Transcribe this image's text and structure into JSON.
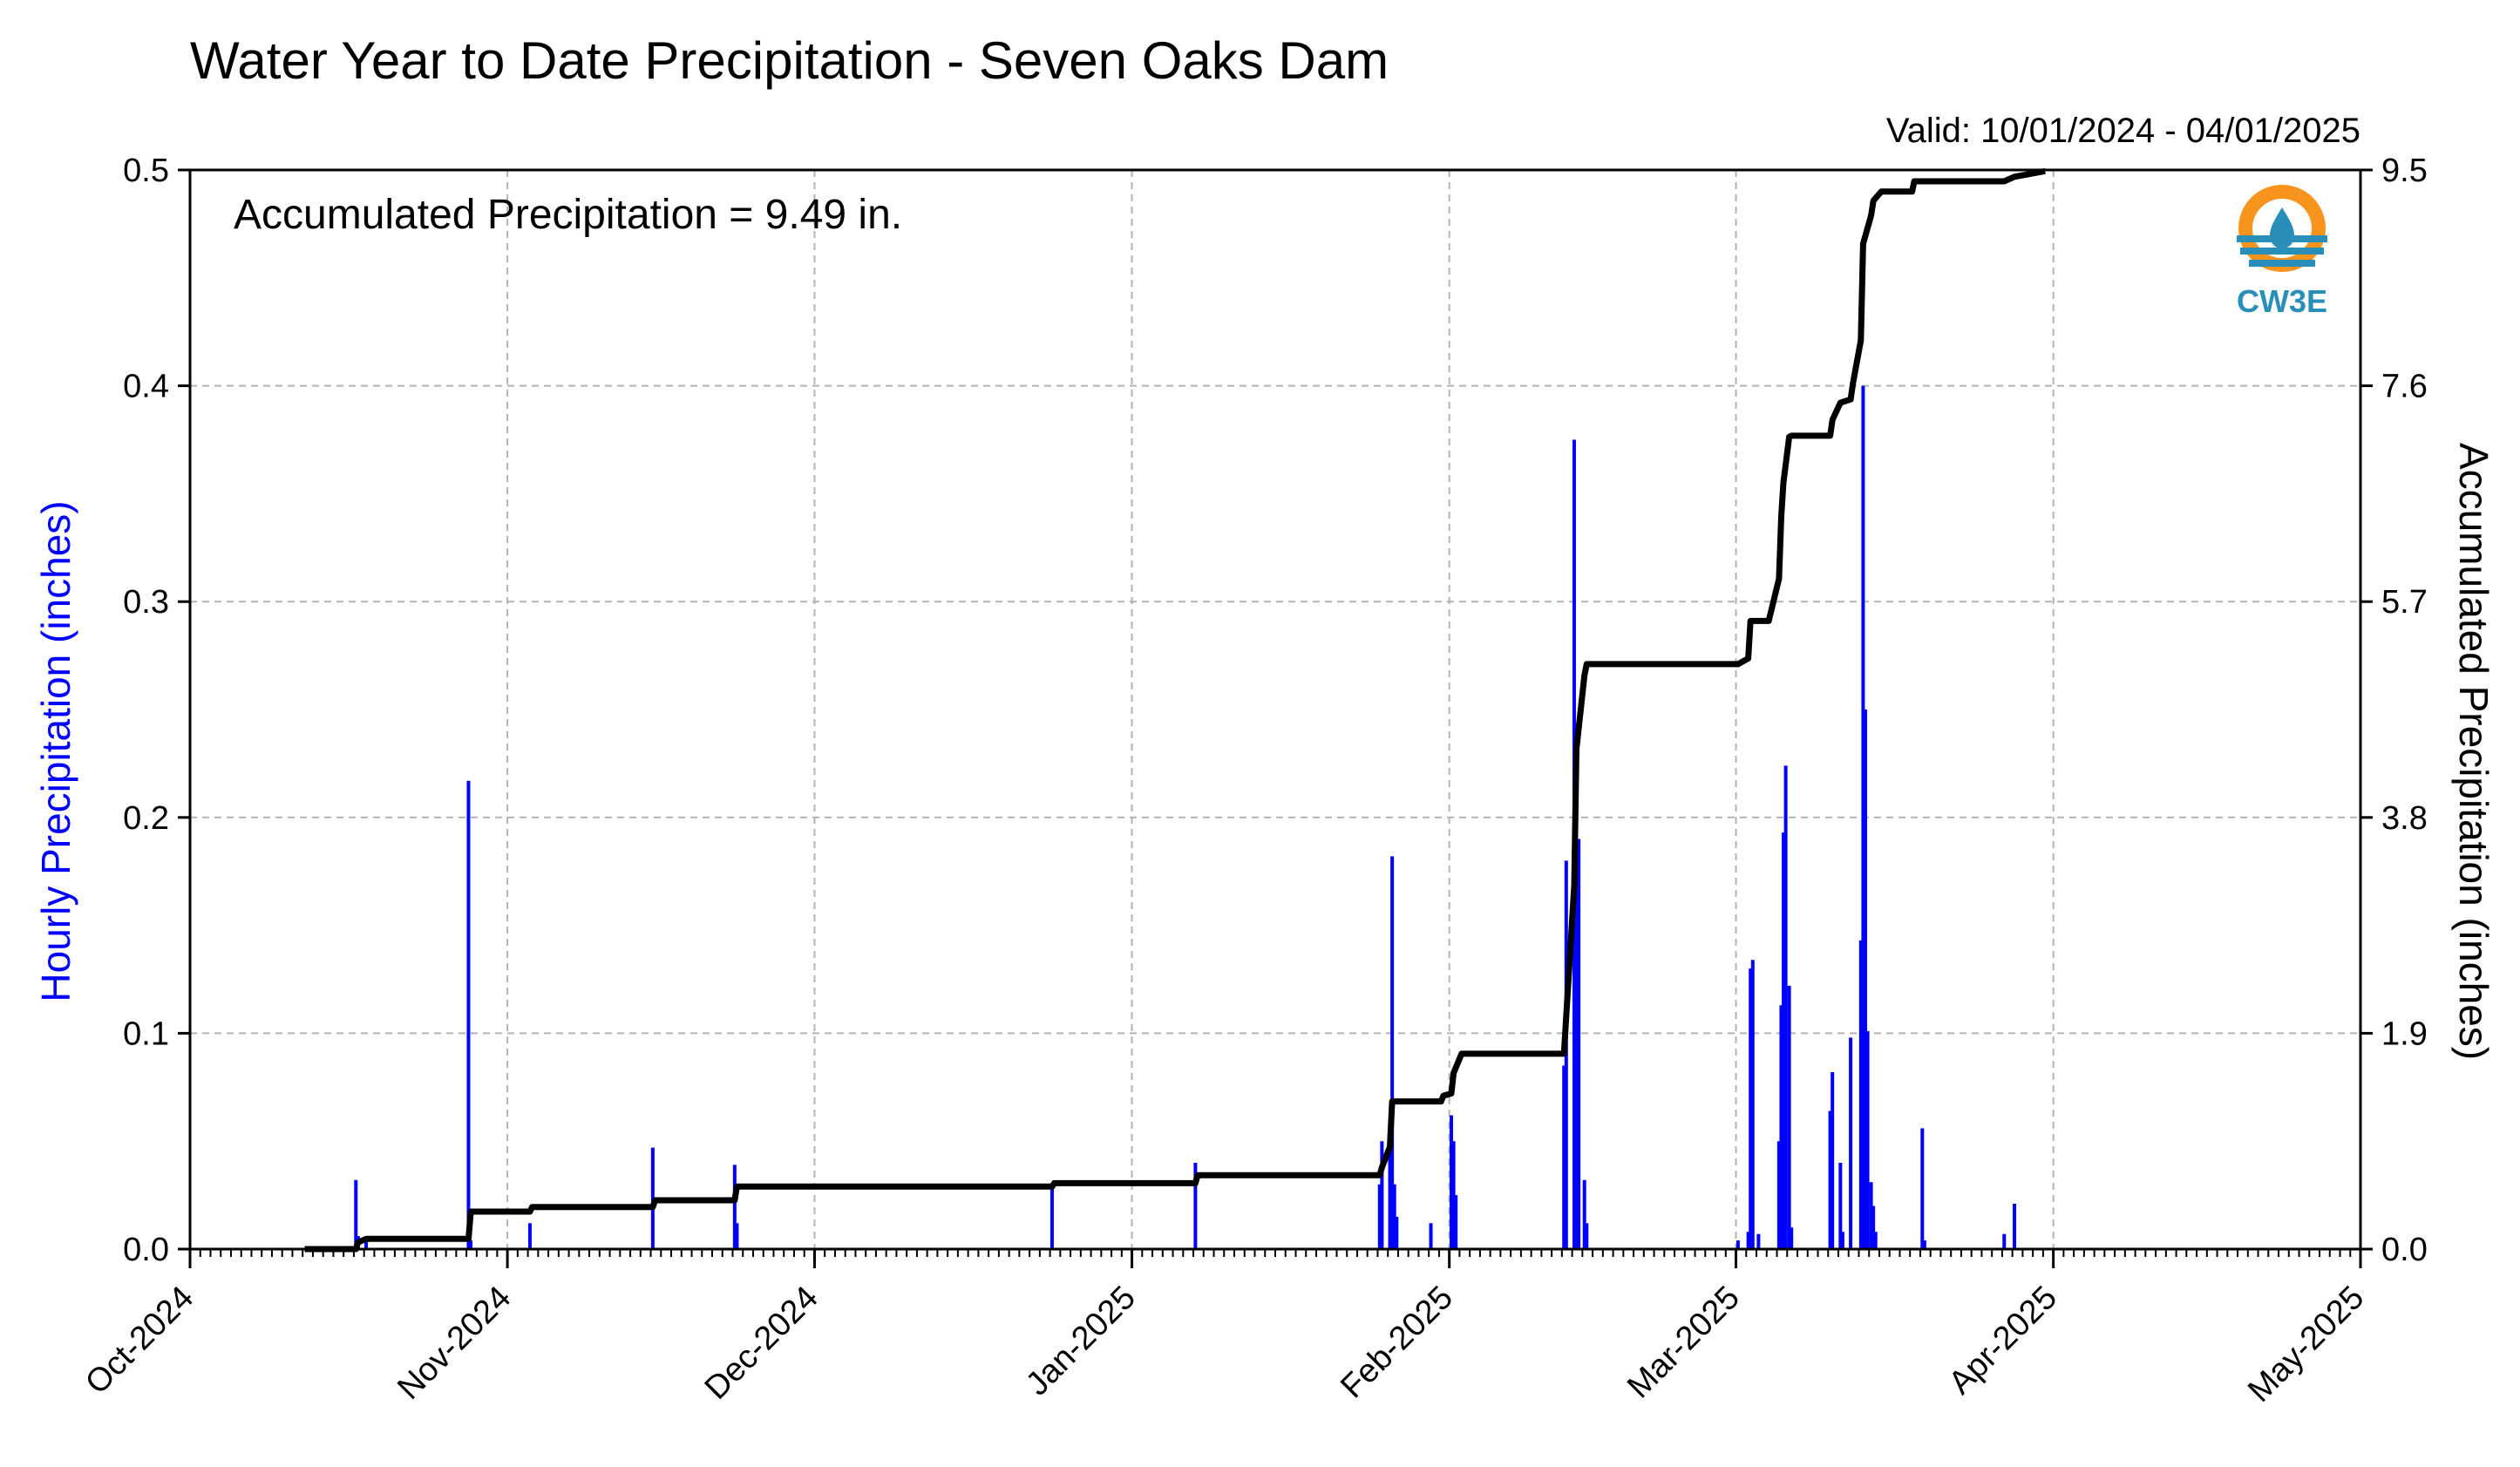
{
  "chart_data": {
    "type": "bar+line",
    "title": "Water Year to Date Precipitation - Seven Oaks Dam",
    "valid_range": "Valid: 10/01/2024 - 04/01/2025",
    "annotation": "Accumulated Precipitation = 9.49 in.",
    "logo_text": "CW3E",
    "ylabel_left": "Hourly Precipitation (inches)",
    "ylabel_right": "Accumulated Precipitation (inches)",
    "ylim_left": [
      0,
      0.5
    ],
    "ylim_right": [
      0,
      9.5
    ],
    "yticks_left": [
      "0.0",
      "0.1",
      "0.2",
      "0.3",
      "0.4",
      "0.5"
    ],
    "yticks_right": [
      "0.0",
      "1.9",
      "3.8",
      "5.7",
      "7.6",
      "9.5"
    ],
    "x_start": "2024-10-01",
    "x_end": "2025-05-01",
    "xticks": [
      {
        "date": "2024-10-01",
        "label": "Oct-2024"
      },
      {
        "date": "2024-11-01",
        "label": "Nov-2024"
      },
      {
        "date": "2024-12-01",
        "label": "Dec-2024"
      },
      {
        "date": "2025-01-01",
        "label": "Jan-2025"
      },
      {
        "date": "2025-02-01",
        "label": "Feb-2025"
      },
      {
        "date": "2025-03-01",
        "label": "Mar-2025"
      },
      {
        "date": "2025-04-01",
        "label": "Apr-2025"
      },
      {
        "date": "2025-05-01",
        "label": "May-2025"
      }
    ],
    "grid": true,
    "colors": {
      "hourly": "#0000ff",
      "accumulated": "#000000"
    },
    "series": [
      {
        "name": "Hourly Precipitation",
        "type": "bar",
        "points": [
          {
            "x": "2024-10-17",
            "y": 0.032
          },
          {
            "x": "2024-10-17",
            "y": 0.006
          },
          {
            "x": "2024-10-18",
            "y": 0.004
          },
          {
            "x": "2024-10-28",
            "y": 0.217
          },
          {
            "x": "2024-10-28",
            "y": 0.004
          },
          {
            "x": "2024-11-03",
            "y": 0.012
          },
          {
            "x": "2024-11-15",
            "y": 0.047
          },
          {
            "x": "2024-11-23",
            "y": 0.039
          },
          {
            "x": "2024-11-23",
            "y": 0.012
          },
          {
            "x": "2024-12-24",
            "y": 0.028
          },
          {
            "x": "2025-01-07",
            "y": 0.04
          },
          {
            "x": "2025-01-25",
            "y": 0.03
          },
          {
            "x": "2025-01-25",
            "y": 0.05
          },
          {
            "x": "2025-01-26",
            "y": 0.052
          },
          {
            "x": "2025-01-26",
            "y": 0.182
          },
          {
            "x": "2025-01-26",
            "y": 0.03
          },
          {
            "x": "2025-01-26",
            "y": 0.015
          },
          {
            "x": "2025-01-30",
            "y": 0.012
          },
          {
            "x": "2025-02-01",
            "y": 0.062
          },
          {
            "x": "2025-02-01",
            "y": 0.05
          },
          {
            "x": "2025-02-01",
            "y": 0.025
          },
          {
            "x": "2025-02-12",
            "y": 0.085
          },
          {
            "x": "2025-02-12",
            "y": 0.18
          },
          {
            "x": "2025-02-13",
            "y": 0.375
          },
          {
            "x": "2025-02-13",
            "y": 0.18
          },
          {
            "x": "2025-02-13",
            "y": 0.19
          },
          {
            "x": "2025-02-14",
            "y": 0.032
          },
          {
            "x": "2025-02-14",
            "y": 0.012
          },
          {
            "x": "2025-03-01",
            "y": 0.004
          },
          {
            "x": "2025-03-02",
            "y": 0.008
          },
          {
            "x": "2025-03-02",
            "y": 0.13
          },
          {
            "x": "2025-03-02",
            "y": 0.134
          },
          {
            "x": "2025-03-03",
            "y": 0.007
          },
          {
            "x": "2025-03-05",
            "y": 0.05
          },
          {
            "x": "2025-03-05",
            "y": 0.113
          },
          {
            "x": "2025-03-05",
            "y": 0.193
          },
          {
            "x": "2025-03-05",
            "y": 0.224
          },
          {
            "x": "2025-03-06",
            "y": 0.122
          },
          {
            "x": "2025-03-06",
            "y": 0.01
          },
          {
            "x": "2025-03-10",
            "y": 0.064
          },
          {
            "x": "2025-03-10",
            "y": 0.082
          },
          {
            "x": "2025-03-11",
            "y": 0.04
          },
          {
            "x": "2025-03-11",
            "y": 0.008
          },
          {
            "x": "2025-03-12",
            "y": 0.098
          },
          {
            "x": "2025-03-13",
            "y": 0.143
          },
          {
            "x": "2025-03-13",
            "y": 0.4
          },
          {
            "x": "2025-03-13",
            "y": 0.25
          },
          {
            "x": "2025-03-13",
            "y": 0.101
          },
          {
            "x": "2025-03-14",
            "y": 0.031
          },
          {
            "x": "2025-03-14",
            "y": 0.02
          },
          {
            "x": "2025-03-14",
            "y": 0.008
          },
          {
            "x": "2025-03-19",
            "y": 0.056
          },
          {
            "x": "2025-03-19",
            "y": 0.004
          },
          {
            "x": "2025-03-27",
            "y": 0.007
          },
          {
            "x": "2025-03-28",
            "y": 0.021
          }
        ]
      },
      {
        "name": "Accumulated Precipitation",
        "type": "line",
        "points": [
          {
            "x": "2024-10-12",
            "y": 0.0
          },
          {
            "x": "2024-10-17",
            "y": 0.0
          },
          {
            "x": "2024-10-17",
            "y": 0.06
          },
          {
            "x": "2024-10-18",
            "y": 0.09
          },
          {
            "x": "2024-10-28",
            "y": 0.09
          },
          {
            "x": "2024-10-28",
            "y": 0.33
          },
          {
            "x": "2024-11-03",
            "y": 0.33
          },
          {
            "x": "2024-11-03",
            "y": 0.37
          },
          {
            "x": "2024-11-15",
            "y": 0.37
          },
          {
            "x": "2024-11-15",
            "y": 0.43
          },
          {
            "x": "2024-11-23",
            "y": 0.43
          },
          {
            "x": "2024-11-23",
            "y": 0.55
          },
          {
            "x": "2024-12-24",
            "y": 0.55
          },
          {
            "x": "2024-12-24",
            "y": 0.58
          },
          {
            "x": "2025-01-07",
            "y": 0.58
          },
          {
            "x": "2025-01-07",
            "y": 0.65
          },
          {
            "x": "2025-01-25",
            "y": 0.65
          },
          {
            "x": "2025-01-25",
            "y": 0.72
          },
          {
            "x": "2025-01-26",
            "y": 0.9
          },
          {
            "x": "2025-01-26",
            "y": 1.3
          },
          {
            "x": "2025-01-31",
            "y": 1.3
          },
          {
            "x": "2025-01-31",
            "y": 1.35
          },
          {
            "x": "2025-02-01",
            "y": 1.37
          },
          {
            "x": "2025-02-01",
            "y": 1.55
          },
          {
            "x": "2025-02-02",
            "y": 1.72
          },
          {
            "x": "2025-02-12",
            "y": 1.72
          },
          {
            "x": "2025-02-12",
            "y": 2.05
          },
          {
            "x": "2025-02-13",
            "y": 3.2
          },
          {
            "x": "2025-02-13",
            "y": 4.4
          },
          {
            "x": "2025-02-14",
            "y": 5.05
          },
          {
            "x": "2025-02-14",
            "y": 5.15
          },
          {
            "x": "2025-03-01",
            "y": 5.15
          },
          {
            "x": "2025-03-02",
            "y": 5.2
          },
          {
            "x": "2025-03-02",
            "y": 5.53
          },
          {
            "x": "2025-03-04",
            "y": 5.53
          },
          {
            "x": "2025-03-05",
            "y": 5.9
          },
          {
            "x": "2025-03-05",
            "y": 6.45
          },
          {
            "x": "2025-03-05",
            "y": 6.75
          },
          {
            "x": "2025-03-06",
            "y": 7.15
          },
          {
            "x": "2025-03-06",
            "y": 7.16
          },
          {
            "x": "2025-03-10",
            "y": 7.16
          },
          {
            "x": "2025-03-10",
            "y": 7.3
          },
          {
            "x": "2025-03-11",
            "y": 7.45
          },
          {
            "x": "2025-03-12",
            "y": 7.48
          },
          {
            "x": "2025-03-12",
            "y": 7.62
          },
          {
            "x": "2025-03-13",
            "y": 8.0
          },
          {
            "x": "2025-03-13",
            "y": 8.85
          },
          {
            "x": "2025-03-14",
            "y": 9.1
          },
          {
            "x": "2025-03-14",
            "y": 9.23
          },
          {
            "x": "2025-03-15",
            "y": 9.31
          },
          {
            "x": "2025-03-18",
            "y": 9.31
          },
          {
            "x": "2025-03-18",
            "y": 9.4
          },
          {
            "x": "2025-03-27",
            "y": 9.4
          },
          {
            "x": "2025-03-28",
            "y": 9.44
          },
          {
            "x": "2025-03-31",
            "y": 9.49
          }
        ]
      }
    ]
  }
}
